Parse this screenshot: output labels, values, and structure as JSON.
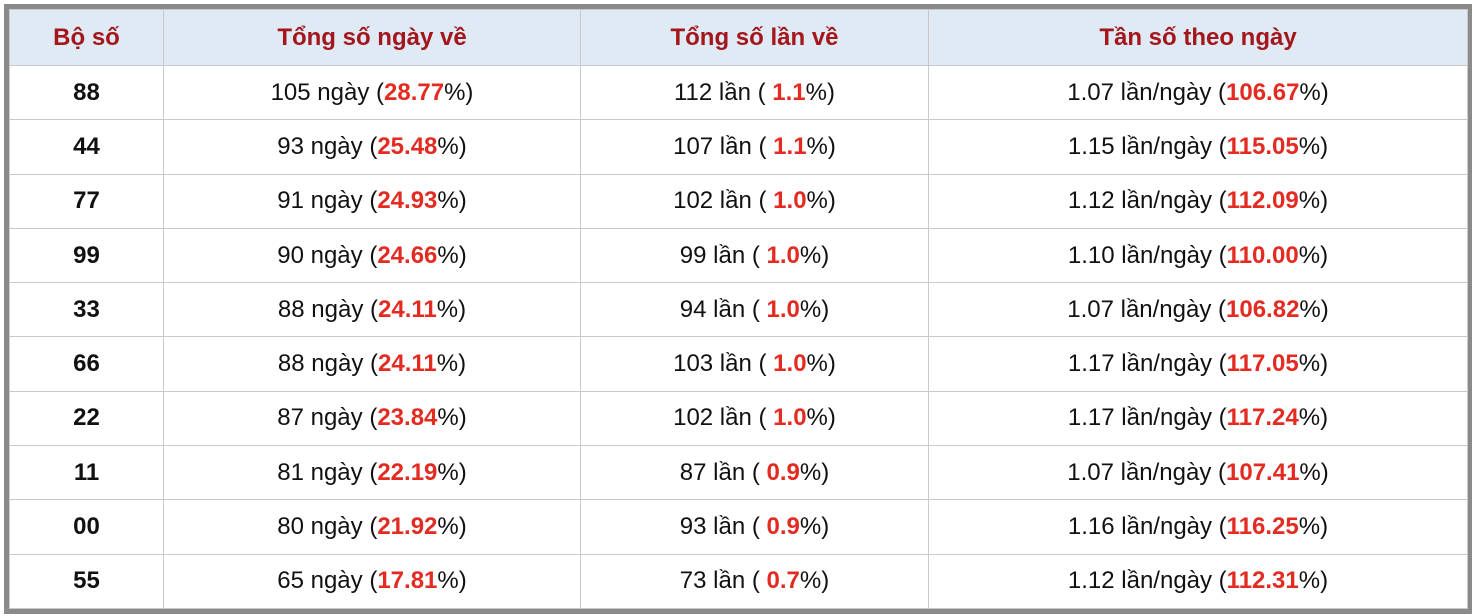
{
  "table": {
    "headers": [
      "Bộ số",
      "Tổng số ngày về",
      "Tổng số lần về",
      "Tần số theo ngày"
    ],
    "rows": [
      [
        "88",
        [
          "105 ngày (",
          "28.77",
          "%)"
        ],
        [
          "112 lần ( ",
          "1.1",
          "%)"
        ],
        [
          "1.07 lần/ngày (",
          "106.67",
          "%)"
        ]
      ],
      [
        "44",
        [
          "93 ngày (",
          "25.48",
          "%)"
        ],
        [
          "107 lần ( ",
          "1.1",
          "%)"
        ],
        [
          "1.15 lần/ngày (",
          "115.05",
          "%)"
        ]
      ],
      [
        "77",
        [
          "91 ngày (",
          "24.93",
          "%)"
        ],
        [
          "102 lần ( ",
          "1.0",
          "%)"
        ],
        [
          "1.12 lần/ngày (",
          "112.09",
          "%)"
        ]
      ],
      [
        "99",
        [
          "90 ngày (",
          "24.66",
          "%)"
        ],
        [
          "99 lần ( ",
          "1.0",
          "%)"
        ],
        [
          "1.10 lần/ngày (",
          "110.00",
          "%)"
        ]
      ],
      [
        "33",
        [
          "88 ngày (",
          "24.11",
          "%)"
        ],
        [
          "94 lần ( ",
          "1.0",
          "%)"
        ],
        [
          "1.07 lần/ngày (",
          "106.82",
          "%)"
        ]
      ],
      [
        "66",
        [
          "88 ngày (",
          "24.11",
          "%)"
        ],
        [
          "103 lần ( ",
          "1.0",
          "%)"
        ],
        [
          "1.17 lần/ngày (",
          "117.05",
          "%)"
        ]
      ],
      [
        "22",
        [
          "87 ngày (",
          "23.84",
          "%)"
        ],
        [
          "102 lần ( ",
          "1.0",
          "%)"
        ],
        [
          "1.17 lần/ngày (",
          "117.24",
          "%)"
        ]
      ],
      [
        "11",
        [
          "81 ngày (",
          "22.19",
          "%)"
        ],
        [
          "87 lần ( ",
          "0.9",
          "%)"
        ],
        [
          "1.07 lần/ngày (",
          "107.41",
          "%)"
        ]
      ],
      [
        "00",
        [
          "80 ngày (",
          "21.92",
          "%)"
        ],
        [
          "93 lần ( ",
          "0.9",
          "%)"
        ],
        [
          "1.16 lần/ngày (",
          "116.25",
          "%)"
        ]
      ],
      [
        "55",
        [
          "65 ngày (",
          "17.81",
          "%)"
        ],
        [
          "73 lần ( ",
          "0.7",
          "%)"
        ],
        [
          "1.12 lần/ngày (",
          "112.31",
          "%)"
        ]
      ]
    ]
  }
}
